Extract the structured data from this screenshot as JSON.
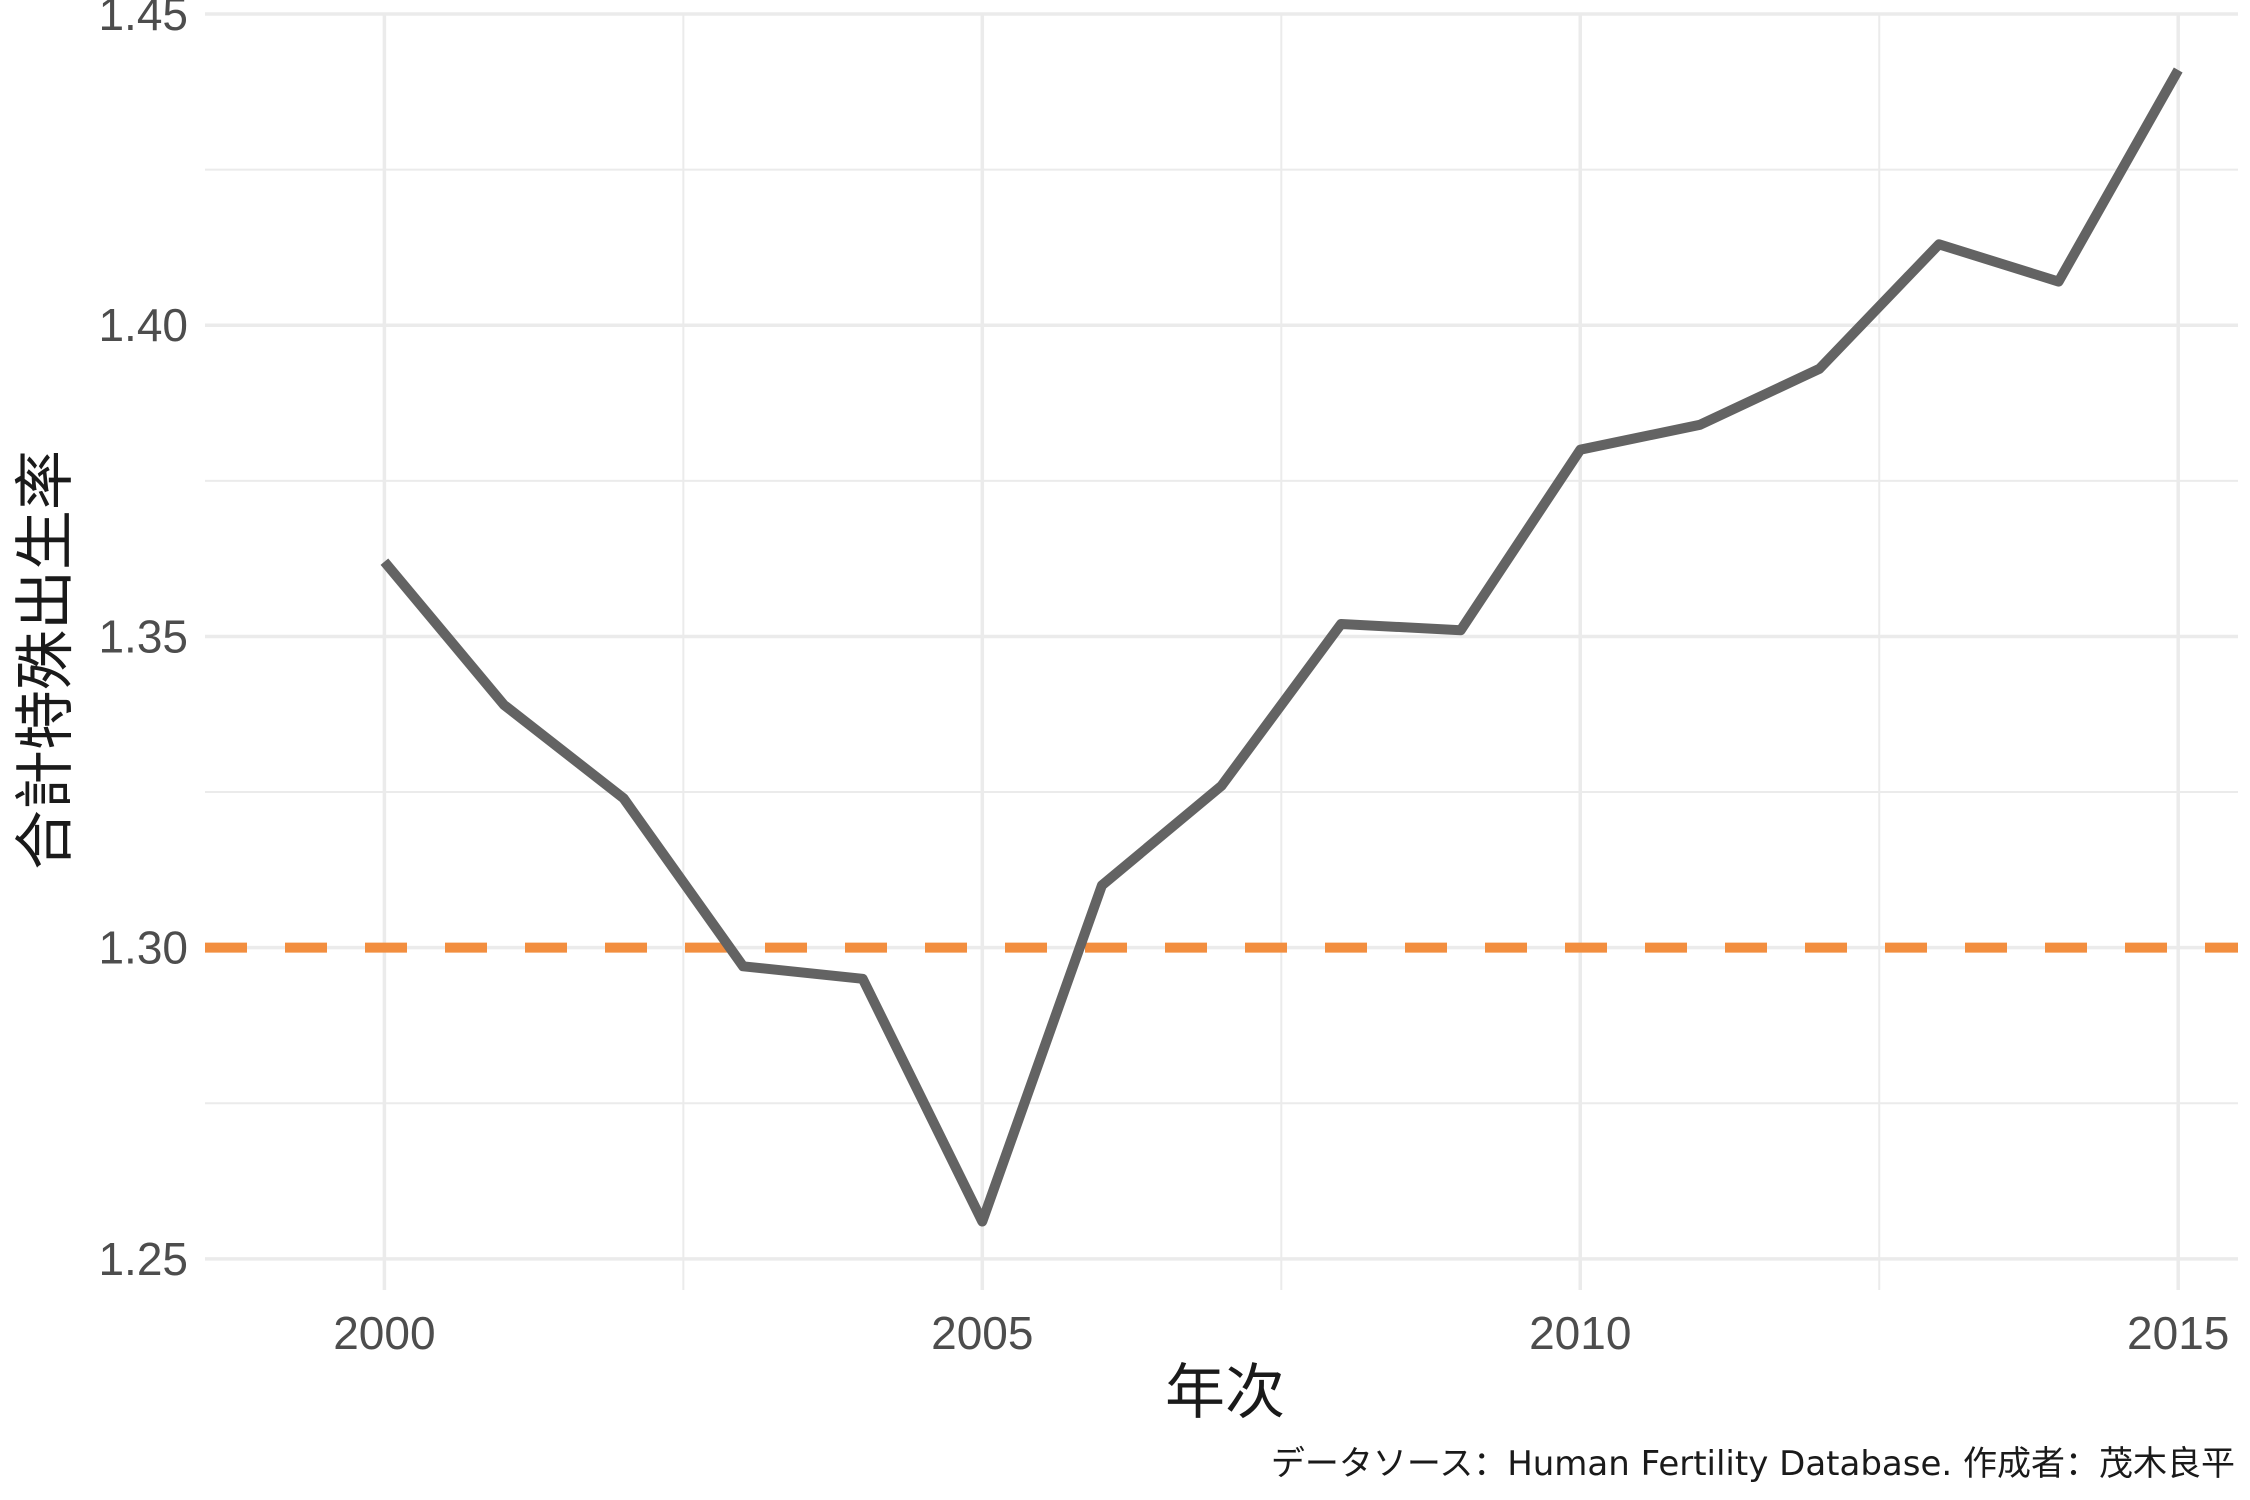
{
  "chart_data": {
    "type": "line",
    "title": "",
    "xlabel": "年次",
    "ylabel": "合計特殊出生率",
    "caption": "データソース：Human Fertility Database. 作成者：茂木良平",
    "x": [
      2000,
      2001,
      2002,
      2003,
      2004,
      2005,
      2006,
      2007,
      2008,
      2009,
      2010,
      2011,
      2012,
      2013,
      2014,
      2015
    ],
    "series": [
      {
        "values": [
          1.362,
          1.339,
          1.324,
          1.297,
          1.295,
          1.256,
          1.31,
          1.326,
          1.352,
          1.351,
          1.38,
          1.384,
          1.393,
          1.413,
          1.407,
          1.441
        ],
        "color": "#636363"
      }
    ],
    "reference_line": {
      "y": 1.3,
      "style": "dashed",
      "color": "#f28e3f"
    },
    "xlim": [
      1998.5,
      2015.5
    ],
    "ylim": [
      1.245,
      1.45
    ],
    "x_ticks": [
      2000,
      2005,
      2010,
      2015
    ],
    "x_tick_labels": [
      "2000",
      "2005",
      "2010",
      "2015"
    ],
    "y_ticks": [
      1.25,
      1.3,
      1.35,
      1.4,
      1.45
    ],
    "y_tick_labels": [
      "1.25",
      "1.30",
      "1.35",
      "1.40",
      "1.45"
    ],
    "grid": true,
    "legend": "none"
  }
}
